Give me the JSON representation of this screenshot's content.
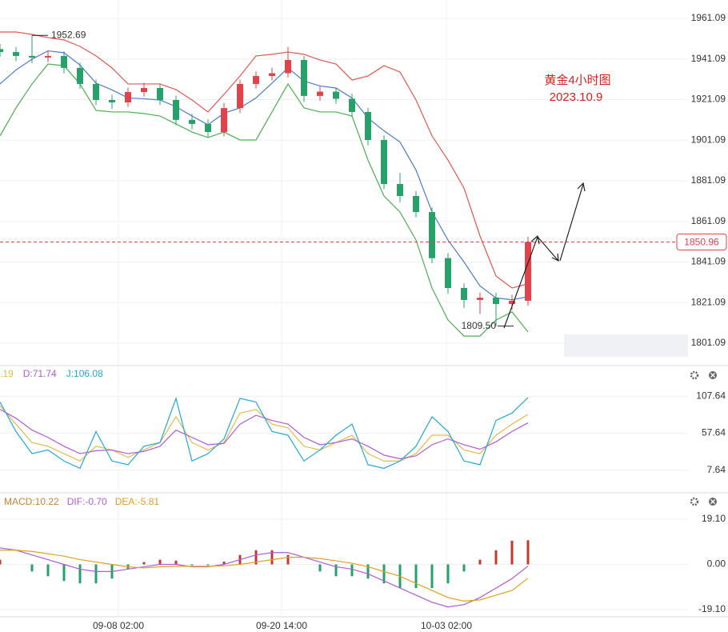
{
  "chart_data": [
    {
      "type": "candlestick",
      "title": "黄金4小时图",
      "subtitle": "2023.10.9",
      "high_label": "1952.69",
      "low_label": "1809.50",
      "x": [
        0,
        1,
        2,
        3,
        4,
        5,
        6,
        7,
        8,
        9,
        10,
        11,
        12,
        13,
        14,
        15,
        16,
        17,
        18,
        19,
        20,
        21,
        22,
        23,
        24,
        25,
        26,
        27,
        28,
        29,
        30,
        31,
        32,
        33
      ],
      "open": [
        1946.0,
        1944.5,
        1942.6,
        1941.8,
        1942.6,
        1936.7,
        1928.8,
        1920.9,
        1919.7,
        1924.8,
        1926.8,
        1920.9,
        1911.1,
        1909.1,
        1905.1,
        1916.9,
        1928.8,
        1932.7,
        1934.1,
        1940.6,
        1922.9,
        1925.0,
        1921.5,
        1915.0,
        1901.2,
        1879.5,
        1873.6,
        1865.7,
        1843.0,
        1828.3,
        1822.4,
        1823.5,
        1820.4,
        1822.0
      ],
      "high": [
        1948.5,
        1947.0,
        1952.69,
        1945.3,
        1945.0,
        1939.2,
        1931.0,
        1923.5,
        1927.0,
        1929.4,
        1929.0,
        1923.0,
        1914.0,
        1911.5,
        1919.5,
        1931.0,
        1935.0,
        1936.8,
        1947.0,
        1942.5,
        1927.5,
        1927.0,
        1924.0,
        1917.0,
        1903.5,
        1885.0,
        1876.0,
        1868.0,
        1845.5,
        1830.5,
        1826.0,
        1826.0,
        1825.0,
        1853.5
      ],
      "low": [
        1942.0,
        1940.0,
        1939.0,
        1939.5,
        1934.0,
        1926.5,
        1918.5,
        1916.5,
        1917.5,
        1922.5,
        1918.5,
        1908.5,
        1906.5,
        1902.5,
        1903.0,
        1914.5,
        1926.5,
        1930.5,
        1932.0,
        1920.0,
        1920.5,
        1919.0,
        1912.5,
        1898.5,
        1877.0,
        1870.5,
        1863.0,
        1840.5,
        1825.5,
        1818.5,
        1815.5,
        1809.5,
        1817.5,
        1819.5
      ],
      "close": [
        1944.5,
        1942.6,
        1941.8,
        1942.6,
        1936.7,
        1928.8,
        1920.9,
        1919.7,
        1924.8,
        1926.8,
        1920.9,
        1911.1,
        1909.1,
        1905.1,
        1916.9,
        1928.8,
        1932.7,
        1934.1,
        1940.6,
        1922.9,
        1925.0,
        1921.5,
        1915.0,
        1901.2,
        1879.5,
        1873.6,
        1865.7,
        1843.0,
        1828.3,
        1822.4,
        1823.5,
        1820.4,
        1822.0,
        1850.96
      ],
      "up_color": "#e0434a",
      "down_color": "#27a06a",
      "series": [
        {
          "color": "#e0574f",
          "values": [
            1954.4,
            1954.4,
            1953.2,
            1951.6,
            1950.5,
            1947.3,
            1942.6,
            1936.7,
            1928.8,
            1928.8,
            1928.8,
            1926.0,
            1920.9,
            1915.0,
            1923.7,
            1932.7,
            1942.6,
            1943.4,
            1944.5,
            1943.4,
            1940.6,
            1938.6,
            1930.7,
            1932.7,
            1937.8,
            1934.7,
            1920.9,
            1903.2,
            1891.3,
            1877.5,
            1853.9,
            1834.2,
            1828.3,
            1830.3
          ]
        },
        {
          "color": "#4a7bd0",
          "values": [
            1928.8,
            1935.7,
            1941.0,
            1945.1,
            1944.2,
            1938.1,
            1929.2,
            1925.9,
            1921.9,
            1921.5,
            1920.9,
            1917.6,
            1913.0,
            1908.7,
            1914.4,
            1917.0,
            1921.9,
            1929.2,
            1936.7,
            1930.2,
            1927.8,
            1926.8,
            1921.9,
            1912.0,
            1905.7,
            1900.2,
            1886.4,
            1865.8,
            1851.9,
            1841.1,
            1829.3,
            1823.4,
            1822.5,
            1824.0
          ]
        },
        {
          "color": "#4caf50",
          "values": [
            1903.2,
            1917.0,
            1928.8,
            1938.6,
            1937.8,
            1928.8,
            1915.8,
            1915.0,
            1915.0,
            1914.2,
            1913.0,
            1909.1,
            1905.1,
            1902.4,
            1905.1,
            1901.2,
            1901.2,
            1915.0,
            1928.8,
            1917.0,
            1915.0,
            1915.0,
            1913.0,
            1891.3,
            1873.6,
            1865.7,
            1851.9,
            1828.3,
            1812.5,
            1804.6,
            1804.6,
            1812.5,
            1816.5,
            1806.6
          ]
        }
      ],
      "ylim": [
        1790.85,
        1970.15
      ],
      "yticks": [
        1801.09,
        1821.09,
        1841.09,
        1861.09,
        1881.09,
        1901.09,
        1921.09,
        1941.09,
        1961.09
      ],
      "grid": true
    },
    {
      "type": "line",
      "legend_texts": [
        ".19",
        "D:71.74",
        "J:106.08"
      ],
      "series": [
        {
          "color": "#e8b84a",
          "values": [
            95,
            70,
            45,
            40,
            30,
            20,
            40,
            35,
            25,
            35,
            45,
            80,
            45,
            35,
            45,
            85,
            90,
            70,
            65,
            40,
            35,
            45,
            55,
            30,
            20,
            20,
            30,
            55,
            55,
            35,
            30,
            55,
            70,
            83.19
          ]
        },
        {
          "color": "#b25ad9",
          "values": [
            90,
            78,
            62,
            52,
            40,
            30,
            34,
            35,
            30,
            33,
            40,
            62,
            52,
            42,
            44,
            70,
            82,
            75,
            70,
            52,
            42,
            45,
            50,
            40,
            28,
            23,
            27,
            42,
            50,
            42,
            36,
            46,
            60,
            71.74
          ]
        },
        {
          "color": "#22a8d8",
          "values": [
            100,
            60,
            30,
            35,
            20,
            10,
            60,
            20,
            15,
            40,
            45,
            105,
            20,
            30,
            50,
            105,
            100,
            60,
            55,
            20,
            35,
            55,
            70,
            15,
            10,
            20,
            40,
            80,
            60,
            20,
            15,
            75,
            85,
            106.08
          ]
        }
      ],
      "ylim": [
        -22.03,
        148.3
      ],
      "yticks": [
        7.64,
        57.64,
        107.64
      ],
      "grid": true
    },
    {
      "type": "macd",
      "legend_texts": [
        "MACD:10.22",
        "DIF:-0.70",
        "DEA:-5.81"
      ],
      "legend_colors": [
        "#c9822e",
        "#b25ad9",
        "#e0a020"
      ],
      "histogram": [
        2,
        0,
        -3,
        -5,
        -7,
        -8,
        -8,
        -6,
        -2,
        1,
        2,
        1.6,
        -0.4,
        -0.4,
        1.2,
        4,
        6,
        6,
        4,
        0,
        -3,
        -5,
        -5,
        -6,
        -8,
        -10,
        -10,
        -10,
        -8,
        -3,
        2,
        6,
        10,
        10.22
      ],
      "up_color": "#c0392b",
      "down_color": "#26a269",
      "series": [
        {
          "color": "#b25ad9",
          "values": [
            7,
            6,
            4,
            2,
            0,
            -2,
            -3,
            -3,
            -2,
            -1,
            0,
            0,
            -1,
            -1,
            0,
            2,
            4,
            5,
            5,
            3,
            1,
            -1,
            -2,
            -4,
            -7,
            -10,
            -13,
            -16,
            -18,
            -17,
            -14,
            -10,
            -6,
            -0.7
          ]
        },
        {
          "color": "#e0a020",
          "values": [
            6,
            6,
            5.5,
            4.5,
            3.5,
            2,
            1,
            0,
            -1,
            -1.5,
            -1,
            -0.8,
            -0.8,
            -0.8,
            -0.6,
            0,
            1,
            2,
            3,
            3,
            2.5,
            1.5,
            0.5,
            -1,
            -3,
            -5,
            -8,
            -11,
            -14,
            -15.5,
            -15,
            -13,
            -11,
            -5.81
          ]
        }
      ],
      "ylim": [
        -21.8,
        29.92
      ],
      "yticks": [
        {
          "value": -19.1,
          "label": "-19.10"
        },
        {
          "value": 0,
          "label": "0.00"
        },
        {
          "value": 19.1,
          "label": "19.10"
        }
      ],
      "xlim": [
        0,
        45.5
      ],
      "xticks": [
        {
          "value": 7.4,
          "label": "09-08 02:00"
        },
        {
          "value": 17.6,
          "label": "09-20 14:00"
        },
        {
          "value": 27.9,
          "label": "10-03 02:00"
        }
      ],
      "grid": true
    }
  ]
}
